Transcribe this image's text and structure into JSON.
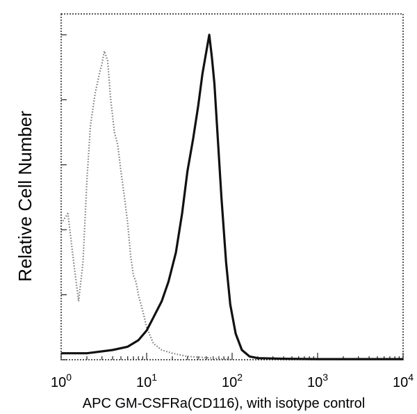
{
  "chart_data": {
    "type": "area",
    "title": "",
    "xlabel": "APC GM-CSFRa(CD116), with isotype control",
    "ylabel": "Relative Cell Number",
    "x_scale": "log",
    "xlim": [
      1,
      10000
    ],
    "ylim": [
      0,
      100
    ],
    "grid": false,
    "legend": "none",
    "x_ticks": [
      {
        "base": "10",
        "exp": "0",
        "value": 1
      },
      {
        "base": "10",
        "exp": "1",
        "value": 10
      },
      {
        "base": "10",
        "exp": "2",
        "value": 100
      },
      {
        "base": "10",
        "exp": "3",
        "value": 1000
      },
      {
        "base": "10",
        "exp": "4",
        "value": 10000
      }
    ],
    "series": [
      {
        "role": "isotype control",
        "style": "dotted",
        "color": "#777777",
        "x": [
          1.0,
          1.2,
          1.4,
          1.6,
          1.8,
          2.0,
          2.2,
          2.5,
          2.8,
          3.0,
          3.2,
          3.5,
          3.8,
          4.2,
          4.6,
          5.0,
          5.5,
          6.0,
          6.5,
          7.0,
          7.5,
          8.0,
          9.0,
          10.0,
          12.0,
          15.0,
          20.0,
          30.0,
          60.0,
          100.0
        ],
        "y": [
          42,
          45,
          30,
          18,
          30,
          55,
          72,
          82,
          88,
          91,
          95,
          92,
          80,
          70,
          66,
          58,
          50,
          42,
          32,
          26,
          24,
          20,
          15,
          10,
          5,
          3,
          2,
          1,
          0.5,
          0
        ]
      },
      {
        "role": "GM-CSFRa (CD116)",
        "style": "solid",
        "color": "#111111",
        "x": [
          1.0,
          2.0,
          4.0,
          6.0,
          8.0,
          10.0,
          12.0,
          15.0,
          18.0,
          22.0,
          26.0,
          30.0,
          35.0,
          40.0,
          45.0,
          50.0,
          54.0,
          58.0,
          62.0,
          68.0,
          75.0,
          85.0,
          95.0,
          110.0,
          130.0,
          160.0,
          200.0,
          400.0,
          1000.0,
          10000.0
        ],
        "y": [
          2,
          2,
          3,
          4,
          6,
          9,
          13,
          18,
          24,
          33,
          45,
          58,
          68,
          78,
          88,
          95,
          100,
          93,
          85,
          68,
          50,
          30,
          17,
          8,
          3,
          1,
          0.5,
          0.3,
          0.2,
          0.2
        ]
      }
    ]
  }
}
